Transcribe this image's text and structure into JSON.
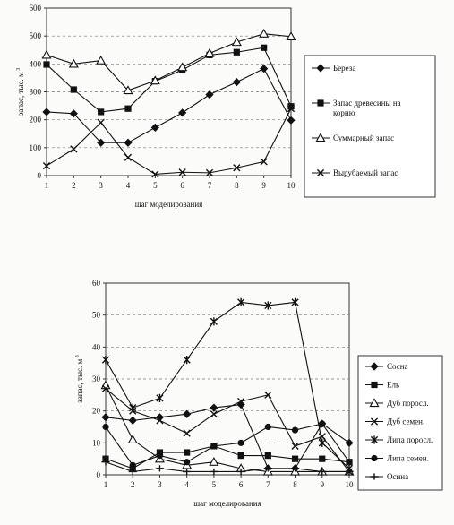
{
  "chart_data": [
    {
      "type": "line",
      "title": "",
      "xlabel": "шаг моделирования",
      "ylabel": "запас, тыс. м",
      "ylabel_sup": "3",
      "x": [
        1,
        2,
        3,
        4,
        5,
        6,
        7,
        8,
        9,
        10
      ],
      "ylim": [
        0,
        600
      ],
      "yticks": [
        0,
        100,
        200,
        300,
        400,
        500,
        600
      ],
      "grid": "horizontal dashed",
      "legend_position": "right",
      "series": [
        {
          "name": "Береза",
          "marker": "diamond",
          "values": [
            228,
            222,
            118,
            118,
            172,
            225,
            290,
            335,
            383,
            198
          ]
        },
        {
          "name": "Запас древесины на корню",
          "marker": "square",
          "values": [
            398,
            308,
            228,
            240,
            338,
            378,
            432,
            442,
            458,
            248
          ]
        },
        {
          "name": "Суммарный запас",
          "marker": "triangle",
          "values": [
            432,
            400,
            412,
            305,
            340,
            388,
            438,
            478,
            508,
            498
          ]
        },
        {
          "name": "Вырубаемый запас",
          "marker": "x",
          "values": [
            35,
            95,
            190,
            65,
            5,
            12,
            10,
            28,
            50,
            240
          ]
        }
      ]
    },
    {
      "type": "line",
      "title": "",
      "xlabel": "шаг моделирования",
      "ylabel": "запас, тыс. м",
      "ylabel_sup": "3",
      "x": [
        1,
        2,
        3,
        4,
        5,
        6,
        7,
        8,
        9,
        10
      ],
      "ylim": [
        0,
        60
      ],
      "yticks": [
        0,
        10,
        20,
        30,
        40,
        50,
        60
      ],
      "grid": "horizontal dashed",
      "legend_position": "right",
      "series": [
        {
          "name": "Сосна",
          "marker": "diamond",
          "values": [
            18,
            17,
            18,
            19,
            21,
            22,
            2,
            2,
            16,
            10
          ]
        },
        {
          "name": "Ель",
          "marker": "square",
          "values": [
            5,
            2,
            7,
            7,
            9,
            6,
            6,
            5,
            5,
            4
          ]
        },
        {
          "name": "Дуб поросл.",
          "marker": "triangle",
          "values": [
            28,
            11,
            5,
            3,
            4,
            2,
            1,
            1,
            1,
            1
          ]
        },
        {
          "name": "Дуб семен.",
          "marker": "x",
          "values": [
            27,
            20,
            17,
            13,
            19,
            23,
            25,
            9,
            12,
            1
          ]
        },
        {
          "name": "Липа поросл.",
          "marker": "star",
          "values": [
            36,
            21,
            24,
            36,
            48,
            54,
            53,
            54,
            10,
            2
          ]
        },
        {
          "name": "Липа семен.",
          "marker": "dot",
          "values": [
            15,
            3,
            6,
            4,
            9,
            10,
            15,
            14,
            16,
            4
          ]
        },
        {
          "name": "Осина",
          "marker": "plus",
          "values": [
            4,
            1,
            2,
            1,
            1,
            1,
            2,
            2,
            1,
            1
          ]
        }
      ]
    }
  ]
}
